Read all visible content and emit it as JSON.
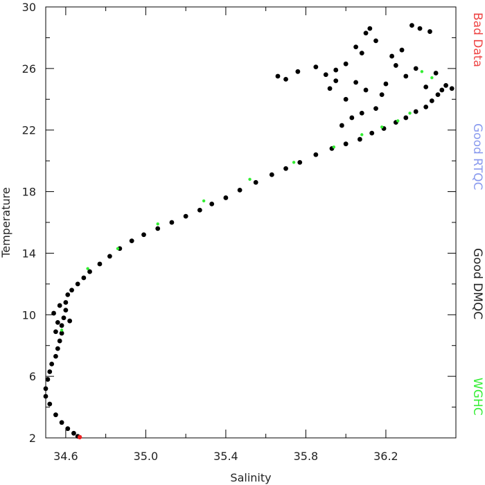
{
  "chart_data": {
    "type": "scatter",
    "title": "",
    "xlabel": "Salinity",
    "ylabel": "Temperature",
    "xlim": [
      34.5,
      36.55
    ],
    "ylim": [
      2,
      30
    ],
    "x_ticks": [
      34.6,
      35.0,
      35.4,
      35.8,
      36.2
    ],
    "x_tick_labels": [
      "34.6",
      "35.0",
      "35.4",
      "35.8",
      "36.2"
    ],
    "y_ticks": [
      2,
      6,
      10,
      14,
      18,
      22,
      26,
      30
    ],
    "y_tick_labels": [
      "2",
      "6",
      "10",
      "14",
      "18",
      "22",
      "26",
      "30"
    ],
    "grid": false,
    "legend_position": "right (vertical)",
    "series": [
      {
        "name": "Good DMQC",
        "color": "#000000",
        "points": [
          [
            34.52,
            4.2
          ],
          [
            34.5,
            4.7
          ],
          [
            34.5,
            5.2
          ],
          [
            34.51,
            5.8
          ],
          [
            34.52,
            6.3
          ],
          [
            34.53,
            6.8
          ],
          [
            34.55,
            7.3
          ],
          [
            34.56,
            7.8
          ],
          [
            34.57,
            8.3
          ],
          [
            34.58,
            8.8
          ],
          [
            34.58,
            9.3
          ],
          [
            34.59,
            9.8
          ],
          [
            34.6,
            10.3
          ],
          [
            34.6,
            10.8
          ],
          [
            34.61,
            11.3
          ],
          [
            34.63,
            11.6
          ],
          [
            34.66,
            12.0
          ],
          [
            34.69,
            12.4
          ],
          [
            34.72,
            12.8
          ],
          [
            34.77,
            13.3
          ],
          [
            34.82,
            13.8
          ],
          [
            34.87,
            14.3
          ],
          [
            34.93,
            14.8
          ],
          [
            34.99,
            15.2
          ],
          [
            35.06,
            15.6
          ],
          [
            35.13,
            16.0
          ],
          [
            35.2,
            16.4
          ],
          [
            35.27,
            16.8
          ],
          [
            35.33,
            17.2
          ],
          [
            35.4,
            17.6
          ],
          [
            35.47,
            18.1
          ],
          [
            35.55,
            18.6
          ],
          [
            35.63,
            19.1
          ],
          [
            35.7,
            19.5
          ],
          [
            35.77,
            19.9
          ],
          [
            35.85,
            20.4
          ],
          [
            35.93,
            20.8
          ],
          [
            36.0,
            21.1
          ],
          [
            36.07,
            21.4
          ],
          [
            36.13,
            21.8
          ],
          [
            36.19,
            22.1
          ],
          [
            36.25,
            22.5
          ],
          [
            36.3,
            22.8
          ],
          [
            36.35,
            23.2
          ],
          [
            36.4,
            23.5
          ],
          [
            36.43,
            23.9
          ],
          [
            36.46,
            24.3
          ],
          [
            36.48,
            24.6
          ],
          [
            34.55,
            3.5
          ],
          [
            34.58,
            3.0
          ],
          [
            34.61,
            2.6
          ],
          [
            34.64,
            2.3
          ],
          [
            34.66,
            2.1
          ],
          [
            34.56,
            9.5
          ],
          [
            34.54,
            10.1
          ],
          [
            34.57,
            10.6
          ],
          [
            34.62,
            9.6
          ],
          [
            34.55,
            8.9
          ],
          [
            35.66,
            25.5
          ],
          [
            35.7,
            25.3
          ],
          [
            35.76,
            25.8
          ],
          [
            35.85,
            26.1
          ],
          [
            35.9,
            25.6
          ],
          [
            35.95,
            25.9
          ],
          [
            36.0,
            26.3
          ],
          [
            36.05,
            27.4
          ],
          [
            36.08,
            27.0
          ],
          [
            36.1,
            28.3
          ],
          [
            36.12,
            28.6
          ],
          [
            36.15,
            27.8
          ],
          [
            36.05,
            25.1
          ],
          [
            36.1,
            24.6
          ],
          [
            36.15,
            23.4
          ],
          [
            36.2,
            25.0
          ],
          [
            36.25,
            26.2
          ],
          [
            36.3,
            25.5
          ],
          [
            36.35,
            26.0
          ],
          [
            36.4,
            24.8
          ],
          [
            36.45,
            25.7
          ],
          [
            36.5,
            24.9
          ],
          [
            36.53,
            24.7
          ],
          [
            36.33,
            28.8
          ],
          [
            36.37,
            28.6
          ],
          [
            36.42,
            28.4
          ],
          [
            36.28,
            27.2
          ],
          [
            36.23,
            26.8
          ],
          [
            36.18,
            24.3
          ],
          [
            36.0,
            24.0
          ],
          [
            36.03,
            22.8
          ],
          [
            35.98,
            22.3
          ],
          [
            36.08,
            23.1
          ],
          [
            35.95,
            25.2
          ],
          [
            35.92,
            24.7
          ]
        ]
      },
      {
        "name": "WGHC",
        "color": "#33ee33",
        "points": [
          [
            34.58,
            9.0
          ],
          [
            34.71,
            13.0
          ],
          [
            34.86,
            14.3
          ],
          [
            35.06,
            15.9
          ],
          [
            35.29,
            17.4
          ],
          [
            35.52,
            18.8
          ],
          [
            35.74,
            19.9
          ],
          [
            35.94,
            20.9
          ],
          [
            36.08,
            21.7
          ],
          [
            36.18,
            22.2
          ],
          [
            36.26,
            22.6
          ],
          [
            36.32,
            23.1
          ],
          [
            36.38,
            25.8
          ],
          [
            36.43,
            25.4
          ]
        ]
      },
      {
        "name": "Bad Data",
        "color": "#ee2222",
        "points": [
          [
            34.67,
            2.05
          ]
        ]
      }
    ],
    "legend": [
      {
        "label": "Bad Data",
        "color": "#ee4444"
      },
      {
        "label": "Good RTQC",
        "color": "#8899ee"
      },
      {
        "label": "Good DMQC",
        "color": "#222222"
      },
      {
        "label": "WGHC",
        "color": "#33ee33"
      }
    ]
  }
}
